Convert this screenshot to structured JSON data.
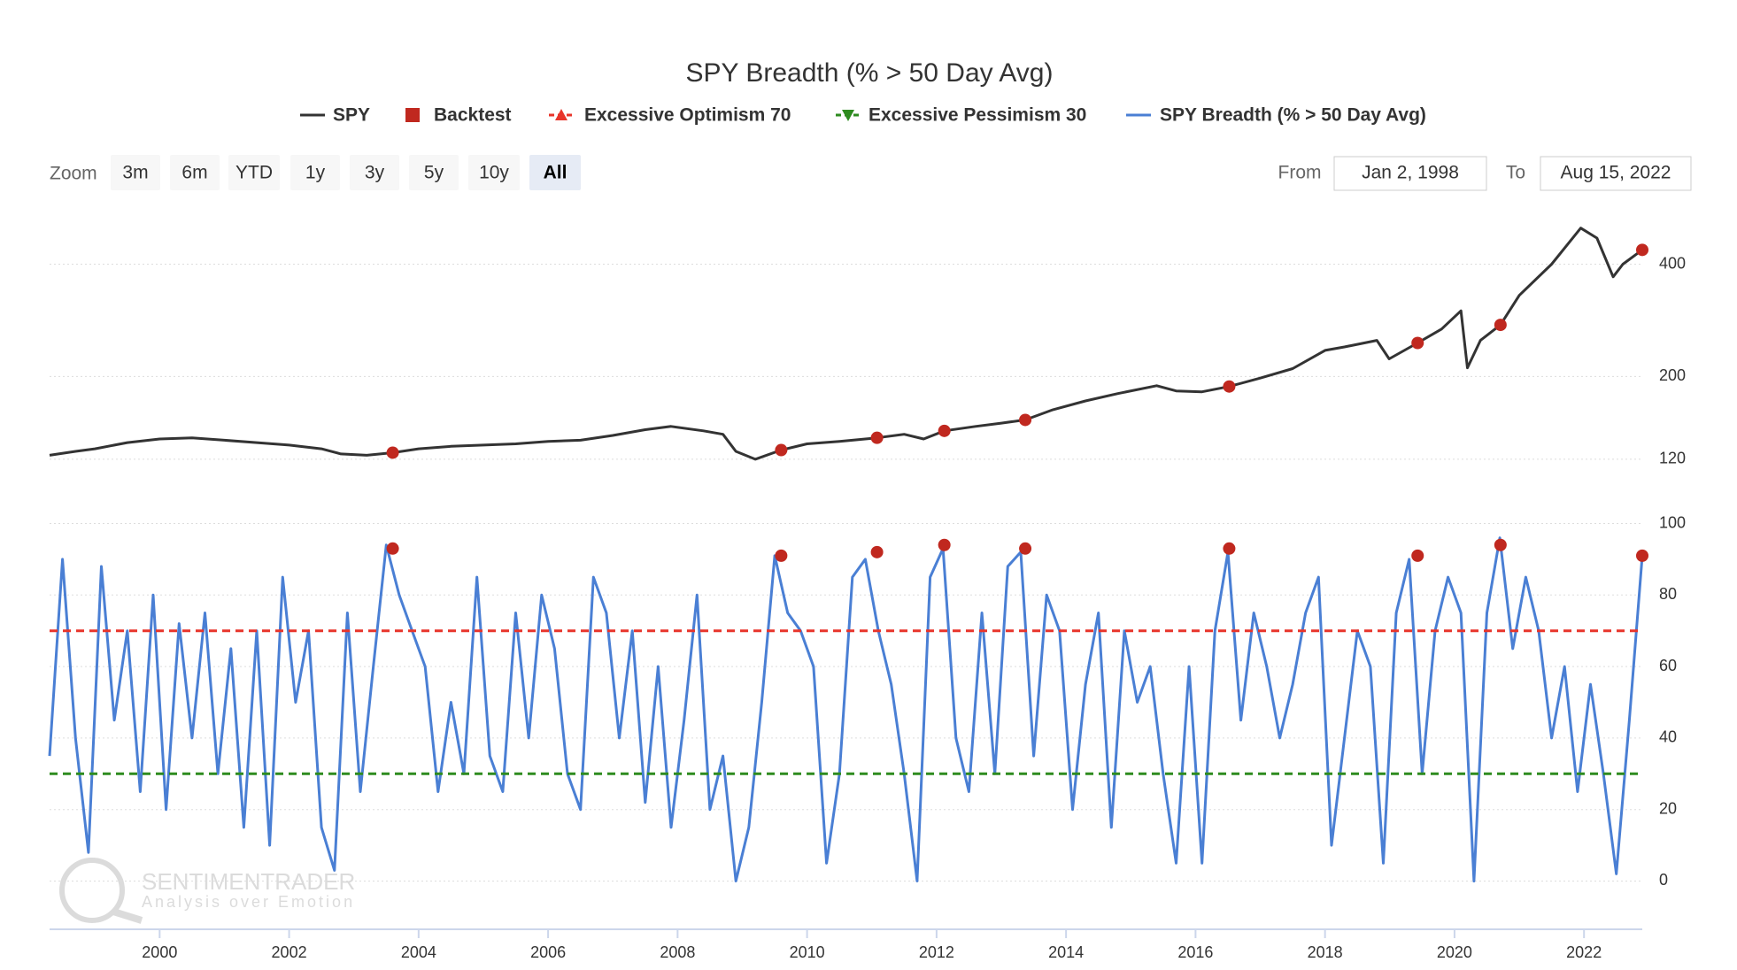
{
  "chart_data": [
    {
      "type": "line",
      "title": "SPY Breadth (% > 50 Day Avg)",
      "log": true,
      "grid": true,
      "xlim": [
        1998.3,
        2022.9
      ],
      "ylim": [
        118,
        530
      ],
      "yticks": [
        120,
        200,
        400
      ],
      "series": [
        {
          "name": "SPY",
          "color": "#333333",
          "x": [
            1998.3,
            1998.7,
            1999.0,
            1999.5,
            2000.0,
            2000.5,
            2001.0,
            2001.5,
            2002.0,
            2002.5,
            2002.8,
            2003.2,
            2003.6,
            2004.0,
            2004.5,
            2005.0,
            2005.5,
            2006.0,
            2006.5,
            2007.0,
            2007.5,
            2007.9,
            2008.4,
            2008.7,
            2008.9,
            2009.2,
            2009.6,
            2010.0,
            2010.5,
            2011.08,
            2011.5,
            2011.8,
            2012.12,
            2012.6,
            2013.0,
            2013.37,
            2013.8,
            2014.3,
            2014.8,
            2015.4,
            2015.7,
            2016.1,
            2016.52,
            2017.0,
            2017.5,
            2018.0,
            2018.3,
            2018.8,
            2018.99,
            2019.43,
            2019.8,
            2020.1,
            2020.2,
            2020.4,
            2020.71,
            2021.0,
            2021.5,
            2021.95,
            2022.2,
            2022.45,
            2022.6,
            2022.9
          ],
          "values": [
            123,
            126,
            128,
            133,
            136,
            137,
            135,
            133,
            131,
            128,
            124,
            123,
            125,
            128,
            130,
            131,
            132,
            134,
            135,
            139,
            144,
            147,
            143,
            140,
            126,
            120,
            127,
            132,
            134,
            137,
            140,
            136,
            143,
            147,
            150,
            153,
            163,
            172,
            180,
            189,
            183,
            182,
            188,
            198,
            210,
            235,
            240,
            250,
            223,
            246,
            268,
            300,
            211,
            250,
            275,
            330,
            400,
            500,
            470,
            370,
            400,
            437
          ]
        },
        {
          "name": "Backtest",
          "color": "#c0281f",
          "x": [
            2003.6,
            2009.6,
            2011.08,
            2012.12,
            2013.37,
            2016.52,
            2019.43,
            2020.71,
            2022.9
          ],
          "values": [
            125,
            127,
            137,
            143,
            153,
            188,
            246,
            275,
            437
          ]
        }
      ]
    },
    {
      "type": "line",
      "grid": true,
      "xlim": [
        1998.3,
        2022.9
      ],
      "xticks": [
        2000,
        2002,
        2004,
        2006,
        2008,
        2010,
        2012,
        2014,
        2016,
        2018,
        2020,
        2022
      ],
      "ylim": [
        -13,
        113
      ],
      "yticks": [
        0,
        20,
        40,
        60,
        80,
        100
      ],
      "series": [
        {
          "name": "Excessive Optimism 70",
          "color": "#e8352b",
          "value": 70,
          "marker": "triangle-up"
        },
        {
          "name": "Excessive Pessimism 30",
          "color": "#2e8b1f",
          "value": 30,
          "marker": "triangle-down"
        },
        {
          "name": "SPY Breadth (% > 50 Day Avg)",
          "color": "#4a7fd4",
          "x": [
            1998.3,
            1998.5,
            1998.7,
            1998.9,
            1999.1,
            1999.3,
            1999.5,
            1999.7,
            1999.9,
            2000.1,
            2000.3,
            2000.5,
            2000.7,
            2000.9,
            2001.1,
            2001.3,
            2001.5,
            2001.7,
            2001.9,
            2002.1,
            2002.3,
            2002.5,
            2002.7,
            2002.9,
            2003.1,
            2003.3,
            2003.5,
            2003.7,
            2003.9,
            2004.1,
            2004.3,
            2004.5,
            2004.7,
            2004.9,
            2005.1,
            2005.3,
            2005.5,
            2005.7,
            2005.9,
            2006.1,
            2006.3,
            2006.5,
            2006.7,
            2006.9,
            2007.1,
            2007.3,
            2007.5,
            2007.7,
            2007.9,
            2008.1,
            2008.3,
            2008.5,
            2008.7,
            2008.9,
            2009.1,
            2009.3,
            2009.5,
            2009.7,
            2009.9,
            2010.1,
            2010.3,
            2010.5,
            2010.7,
            2010.9,
            2011.1,
            2011.3,
            2011.5,
            2011.7,
            2011.9,
            2012.1,
            2012.3,
            2012.5,
            2012.7,
            2012.9,
            2013.1,
            2013.3,
            2013.5,
            2013.7,
            2013.9,
            2014.1,
            2014.3,
            2014.5,
            2014.7,
            2014.9,
            2015.1,
            2015.3,
            2015.5,
            2015.7,
            2015.9,
            2016.1,
            2016.3,
            2016.5,
            2016.7,
            2016.9,
            2017.1,
            2017.3,
            2017.5,
            2017.7,
            2017.9,
            2018.1,
            2018.3,
            2018.5,
            2018.7,
            2018.9,
            2019.1,
            2019.3,
            2019.5,
            2019.7,
            2019.9,
            2020.1,
            2020.3,
            2020.5,
            2020.7,
            2020.9,
            2021.1,
            2021.3,
            2021.5,
            2021.7,
            2021.9,
            2022.1,
            2022.3,
            2022.5,
            2022.7,
            2022.9
          ],
          "values": [
            35,
            90,
            40,
            8,
            88,
            45,
            70,
            25,
            80,
            20,
            72,
            40,
            75,
            30,
            65,
            15,
            70,
            10,
            85,
            50,
            70,
            15,
            3,
            75,
            25,
            60,
            94,
            80,
            70,
            60,
            25,
            50,
            30,
            85,
            35,
            25,
            75,
            40,
            80,
            65,
            30,
            20,
            85,
            75,
            40,
            70,
            22,
            60,
            15,
            45,
            80,
            20,
            35,
            0,
            15,
            50,
            91,
            75,
            70,
            60,
            5,
            30,
            85,
            90,
            70,
            55,
            30,
            0,
            85,
            93,
            40,
            25,
            75,
            30,
            88,
            92,
            35,
            80,
            70,
            20,
            55,
            75,
            15,
            70,
            50,
            60,
            30,
            5,
            60,
            5,
            70,
            92,
            45,
            75,
            60,
            40,
            55,
            75,
            85,
            10,
            40,
            70,
            60,
            5,
            75,
            90,
            30,
            70,
            85,
            75,
            0,
            75,
            96,
            65,
            85,
            70,
            40,
            60,
            25,
            55,
            30,
            2,
            45,
            91
          ]
        }
      ],
      "markers": {
        "color": "#c0281f",
        "x": [
          2003.6,
          2009.6,
          2011.08,
          2012.12,
          2013.37,
          2016.52,
          2019.43,
          2020.71,
          2022.9
        ],
        "values": [
          93,
          91,
          92,
          94,
          93,
          93,
          91,
          94,
          91
        ]
      }
    }
  ],
  "zoom": {
    "label": "Zoom",
    "buttons": [
      "3m",
      "6m",
      "YTD",
      "1y",
      "3y",
      "5y",
      "10y",
      "All"
    ],
    "selected": "All"
  },
  "range": {
    "from_label": "From",
    "from": "Jan 2, 1998",
    "to_label": "To",
    "to": "Aug 15, 2022"
  },
  "watermark": {
    "name": "SENTIMENTRADER",
    "tagline": "Analysis over Emotion"
  }
}
